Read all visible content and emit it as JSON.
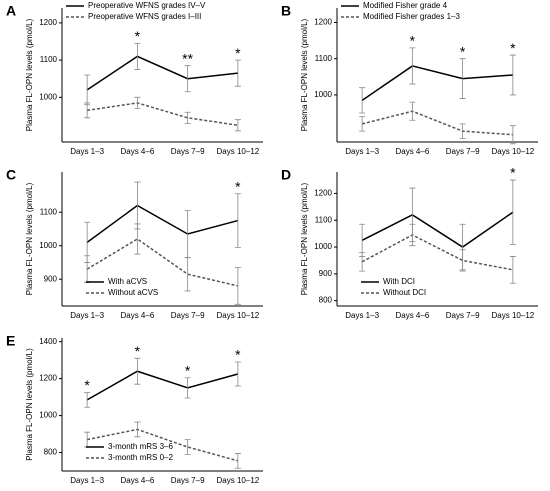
{
  "chart_data": [
    {
      "type": "line",
      "panel": "A",
      "y_label": "Plasma FL-OPN levels (pmol/L)",
      "categories": [
        "Days 1–3",
        "Days 4–6",
        "Days 7–9",
        "Days 10–12"
      ],
      "series": [
        {
          "name": "Preoperative WFNS grades IV–V",
          "color": "#000000",
          "style": "solid",
          "values": [
            1020,
            1110,
            1050,
            1065
          ],
          "errors": [
            40,
            35,
            35,
            35
          ]
        },
        {
          "name": "Preoperative WFNS grades I–III",
          "color": "#555555",
          "style": "dashed",
          "values": [
            965,
            985,
            945,
            925
          ],
          "errors": [
            20,
            15,
            15,
            15
          ]
        }
      ],
      "annotations": [
        null,
        "*",
        "**",
        "*"
      ],
      "ylim": [
        880,
        1240
      ],
      "yticks": [
        1000,
        1100,
        1200
      ],
      "legend": "upper left"
    },
    {
      "type": "line",
      "panel": "B",
      "y_label": "Plasma FL-OPN levels (pmol/L)",
      "categories": [
        "Days 1–3",
        "Days 4–6",
        "Days 7–9",
        "Days 10–12"
      ],
      "series": [
        {
          "name": "Modified Fisher grade 4",
          "color": "#000000",
          "style": "solid",
          "values": [
            985,
            1080,
            1045,
            1055
          ],
          "errors": [
            35,
            50,
            55,
            55
          ]
        },
        {
          "name": "Modified Fisher grades 1–3",
          "color": "#555555",
          "style": "dashed",
          "values": [
            920,
            955,
            900,
            890
          ],
          "errors": [
            20,
            25,
            20,
            25
          ]
        }
      ],
      "annotations": [
        null,
        "*",
        "*",
        "*"
      ],
      "ylim": [
        870,
        1240
      ],
      "yticks": [
        1000,
        1100,
        1200
      ],
      "legend": "upper left"
    },
    {
      "type": "line",
      "panel": "C",
      "y_label": "Plasma FL-OPN levels (pmol/L)",
      "categories": [
        "Days 1–3",
        "Days 4–6",
        "Days 7–9",
        "Days 10–12"
      ],
      "series": [
        {
          "name": "With aCVS",
          "color": "#000000",
          "style": "solid",
          "values": [
            1010,
            1120,
            1035,
            1075
          ],
          "errors": [
            60,
            70,
            70,
            80
          ]
        },
        {
          "name": "Without aCVS",
          "color": "#555555",
          "style": "dashed",
          "values": [
            930,
            1020,
            915,
            880
          ],
          "errors": [
            40,
            45,
            50,
            55
          ]
        }
      ],
      "annotations": [
        null,
        null,
        null,
        "*"
      ],
      "ylim": [
        820,
        1220
      ],
      "yticks": [
        900,
        1000,
        1100
      ],
      "legend": "lower left"
    },
    {
      "type": "line",
      "panel": "D",
      "y_label": "Plasma FL-OPN levels (pmol/L)",
      "categories": [
        "Days 1–3",
        "Days 4–6",
        "Days 7–9",
        "Days 10–12"
      ],
      "series": [
        {
          "name": "With DCI",
          "color": "#000000",
          "style": "solid",
          "values": [
            1025,
            1120,
            1000,
            1130
          ],
          "errors": [
            60,
            100,
            85,
            120
          ]
        },
        {
          "name": "Without DCI",
          "color": "#555555",
          "style": "dashed",
          "values": [
            945,
            1045,
            950,
            915
          ],
          "errors": [
            35,
            40,
            40,
            50
          ]
        }
      ],
      "annotations": [
        null,
        null,
        null,
        "*"
      ],
      "ylim": [
        780,
        1280
      ],
      "yticks": [
        800,
        900,
        1000,
        1100,
        1200
      ],
      "legend": "lower left"
    },
    {
      "type": "line",
      "panel": "E",
      "y_label": "Plasma FL-OPN levels (pmol/L)",
      "categories": [
        "Days 1–3",
        "Days 4–6",
        "Days 7–9",
        "Days 10–12"
      ],
      "series": [
        {
          "name": "3-month mRS 3–6",
          "color": "#000000",
          "style": "solid",
          "values": [
            1085,
            1240,
            1150,
            1225
          ],
          "errors": [
            40,
            70,
            55,
            65
          ]
        },
        {
          "name": "3-month mRS 0–2",
          "color": "#555555",
          "style": "dashed",
          "values": [
            870,
            925,
            830,
            755
          ],
          "errors": [
            40,
            40,
            40,
            40
          ]
        }
      ],
      "annotations": [
        "*",
        "*",
        "*",
        "*"
      ],
      "ylim": [
        700,
        1420
      ],
      "yticks": [
        800,
        1000,
        1200,
        1400
      ],
      "legend": "lower left"
    }
  ]
}
